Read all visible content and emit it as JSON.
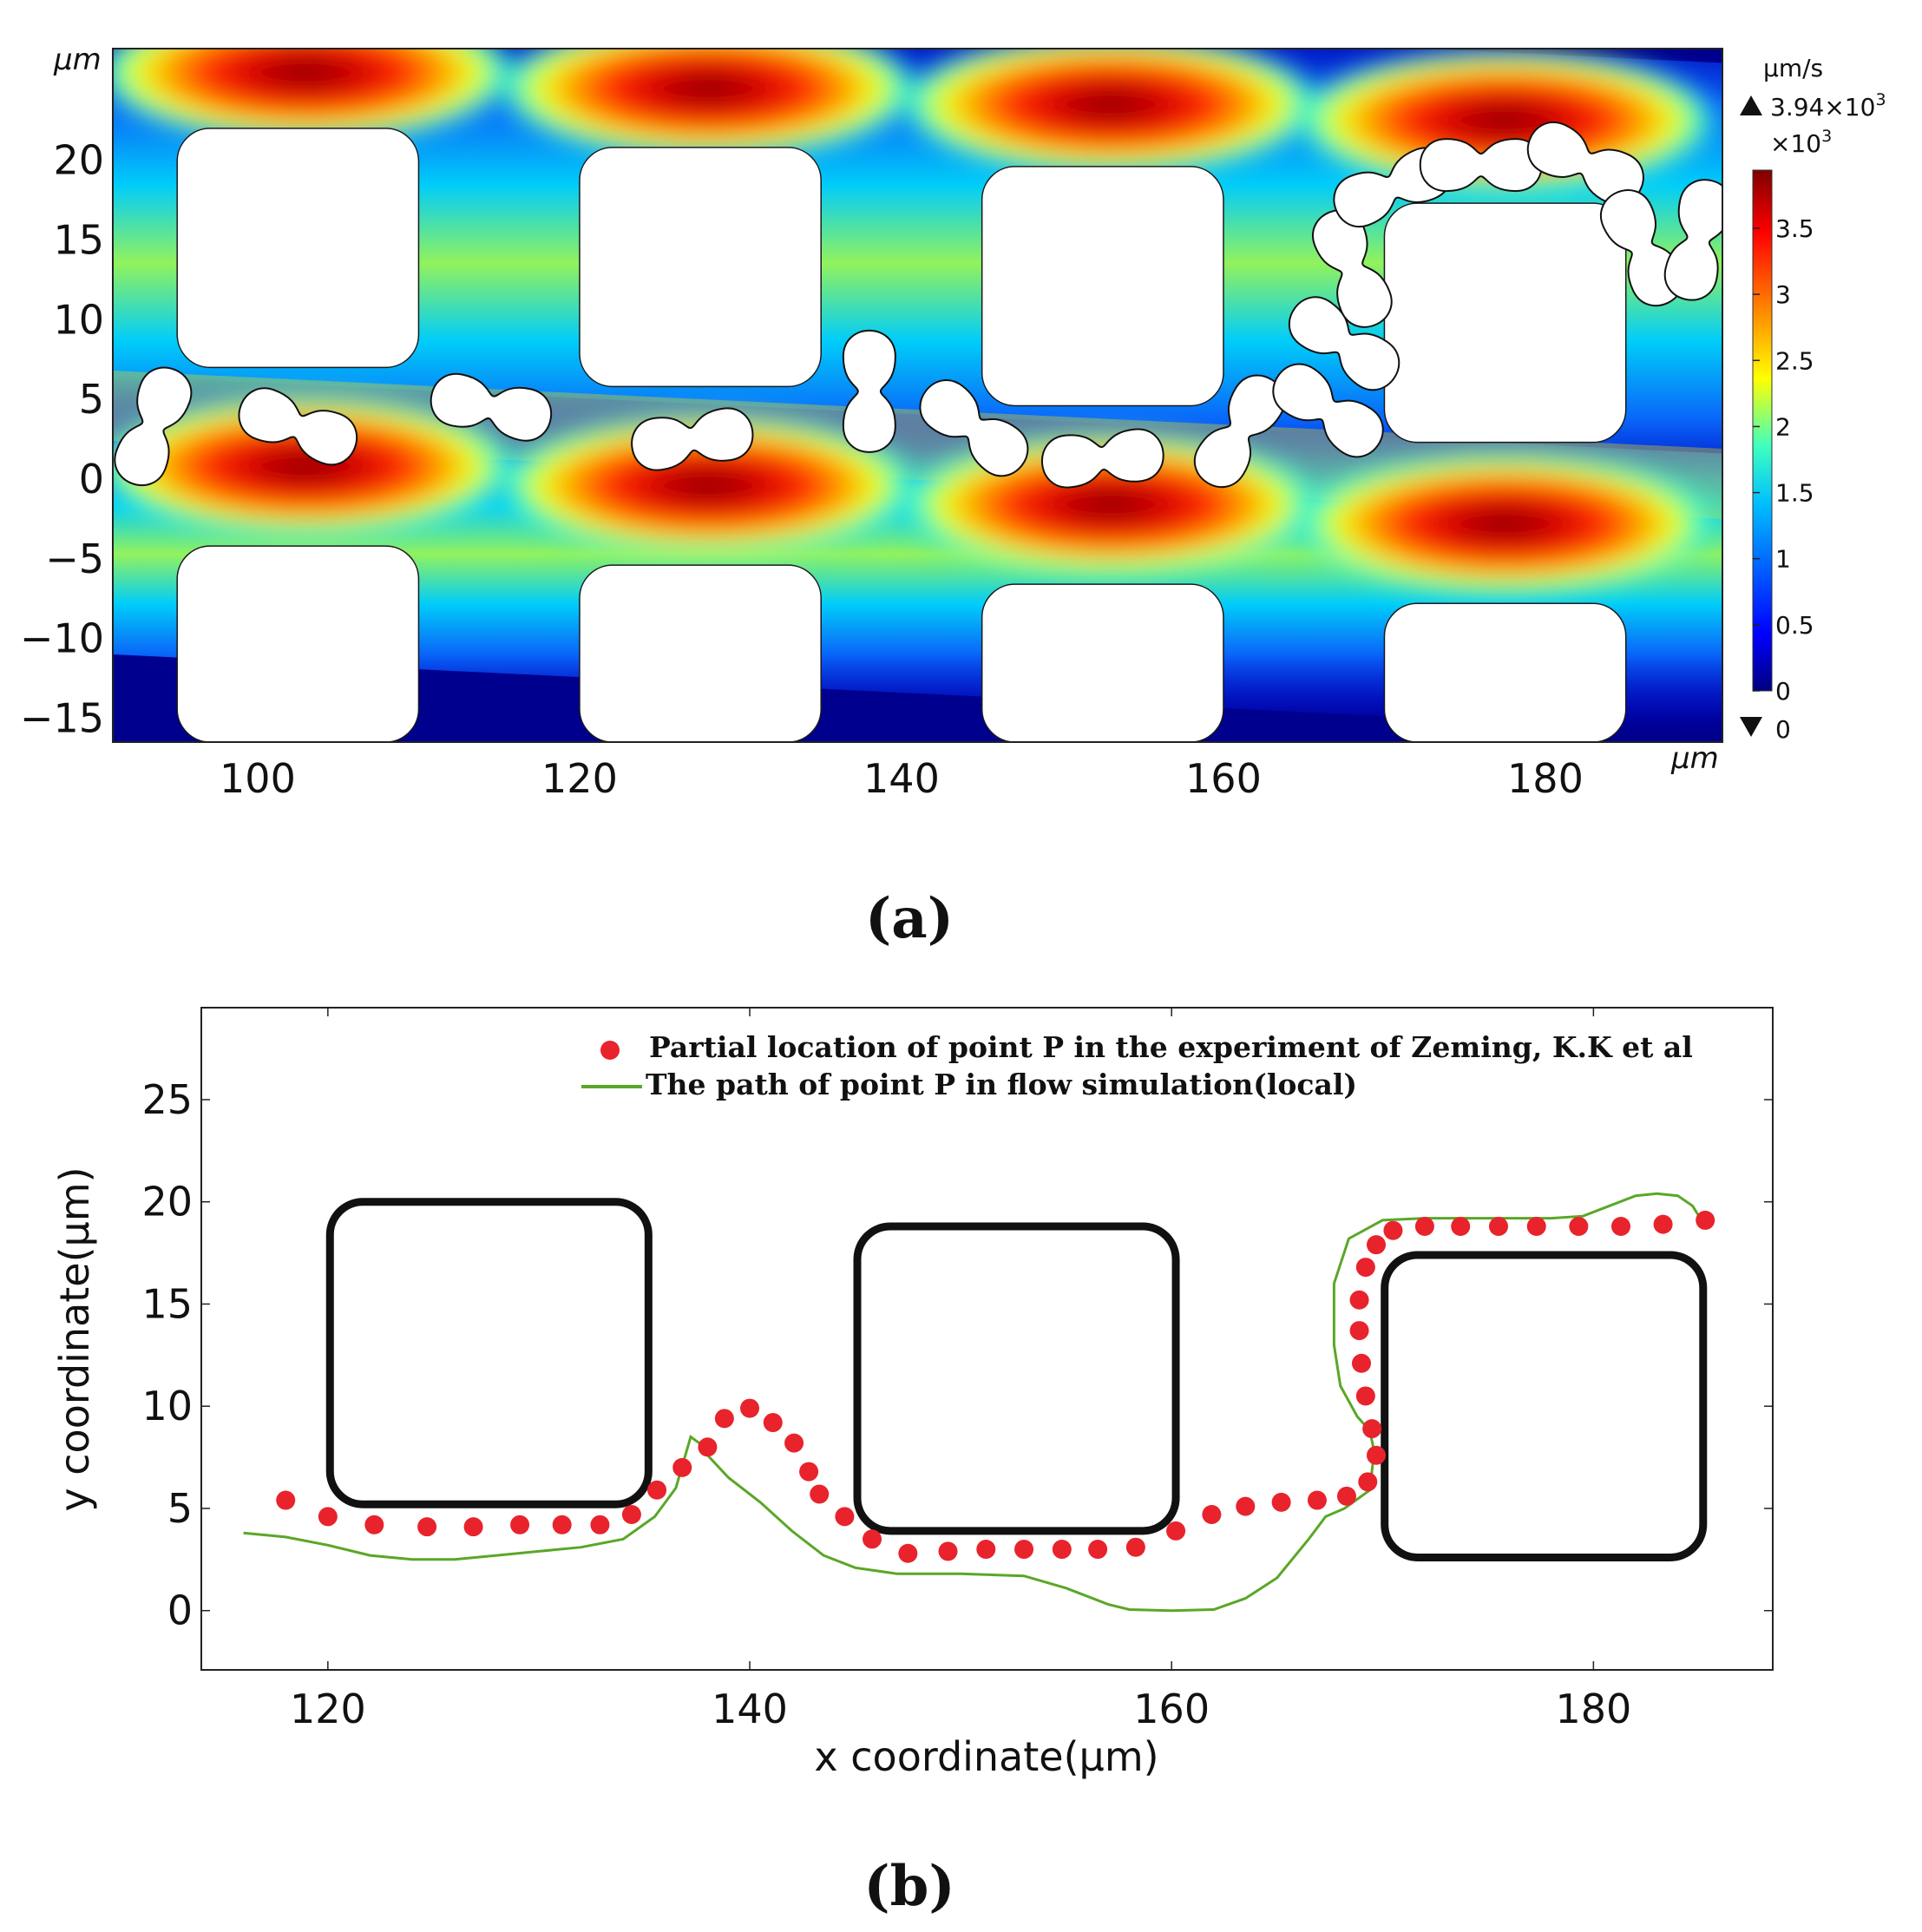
{
  "panel_a_label": "(a)",
  "panel_b_label": "(b)",
  "chart_data": [
    {
      "type": "heatmap",
      "name": "velocity-field",
      "unit_axis": "µm",
      "xticks": [
        "100",
        "120",
        "140",
        "160",
        "180"
      ],
      "xtick_values": [
        100,
        120,
        140,
        160,
        180
      ],
      "yticks": [
        "20",
        "15",
        "10",
        "5",
        "0",
        "−5",
        "−10",
        "−15"
      ],
      "ytick_values": [
        20,
        15,
        10,
        5,
        0,
        -5,
        -10,
        -15
      ],
      "xlim": [
        91,
        191
      ],
      "ylim": [
        -16.5,
        27
      ],
      "colorbar": {
        "unit": "µm/s",
        "max_label": "3.94×10",
        "max_exp": "3",
        "scale_label": "×10",
        "scale_exp": "3",
        "ticks": [
          "3.5",
          "3",
          "2.5",
          "2",
          "1.5",
          "1",
          "0.5",
          "0"
        ],
        "tick_values": [
          3.5,
          3,
          2.5,
          2,
          1.5,
          1,
          0.5,
          0
        ],
        "min_label": "0",
        "range": [
          0,
          3.94
        ]
      },
      "colors": [
        "#00007f",
        "#0000ff",
        "#00bfff",
        "#3fffbf",
        "#ffff00",
        "#ff7f00",
        "#ff0000",
        "#7f0000"
      ],
      "pillars": [
        {
          "x": [
            95,
            110
          ],
          "y": [
            7,
            22
          ]
        },
        {
          "x": [
            120,
            135
          ],
          "y": [
            5.8,
            20.8
          ]
        },
        {
          "x": [
            145,
            160
          ],
          "y": [
            4.6,
            19.6
          ]
        },
        {
          "x": [
            170,
            185
          ],
          "y": [
            2.3,
            17.3
          ]
        },
        {
          "x": [
            95,
            110
          ],
          "y": [
            -16.5,
            -4.2
          ]
        },
        {
          "x": [
            120,
            135
          ],
          "y": [
            -16.5,
            -5.4
          ]
        },
        {
          "x": [
            145,
            160
          ],
          "y": [
            -16.5,
            -6.6
          ]
        },
        {
          "x": [
            170,
            185
          ],
          "y": [
            -16.5,
            -7.8
          ]
        }
      ],
      "cells": [
        {
          "x": 93.5,
          "y": 3.3,
          "angle": -70
        },
        {
          "x": 102.5,
          "y": 3.3,
          "angle": 20
        },
        {
          "x": 114.5,
          "y": 4.5,
          "angle": 12
        },
        {
          "x": 127,
          "y": 2.5,
          "angle": -8
        },
        {
          "x": 138,
          "y": 5.5,
          "angle": 90
        },
        {
          "x": 144.5,
          "y": 3.2,
          "angle": 38
        },
        {
          "x": 152.5,
          "y": 1.3,
          "angle": -5
        },
        {
          "x": 161,
          "y": 3.0,
          "angle": -58
        },
        {
          "x": 166.5,
          "y": 4.3,
          "angle": 35
        },
        {
          "x": 167.5,
          "y": 8.5,
          "angle": 35
        },
        {
          "x": 168,
          "y": 13.2,
          "angle": 68
        },
        {
          "x": 170.5,
          "y": 18.3,
          "angle": -22
        },
        {
          "x": 176,
          "y": 19.7,
          "angle": 0
        },
        {
          "x": 182.5,
          "y": 19.8,
          "angle": 25
        },
        {
          "x": 186,
          "y": 14.5,
          "angle": 65
        },
        {
          "x": 189.5,
          "y": 15,
          "angle": -78
        }
      ],
      "jets": [
        {
          "x": 103,
          "y": 25.5
        },
        {
          "x": 128,
          "y": 24.5
        },
        {
          "x": 153,
          "y": 23.5
        },
        {
          "x": 177.5,
          "y": 22.5
        },
        {
          "x": 103,
          "y": 0.8
        },
        {
          "x": 128,
          "y": -0.4
        },
        {
          "x": 153,
          "y": -1.6
        },
        {
          "x": 177.5,
          "y": -2.8
        }
      ]
    },
    {
      "type": "scatter",
      "name": "trajectory",
      "xlabel": "x coordinate(µm)",
      "ylabel": "y coordinate(µm)",
      "xlim": [
        114,
        188.5
      ],
      "ylim": [
        -2.9,
        29.5
      ],
      "xticks": [
        "120",
        "140",
        "160",
        "180"
      ],
      "xtick_values": [
        120,
        140,
        160,
        180
      ],
      "yticks": [
        "0",
        "5",
        "10",
        "15",
        "20",
        "25"
      ],
      "ytick_values": [
        0,
        5,
        10,
        15,
        20,
        25
      ],
      "colors": {
        "points": "#e8232c",
        "path": "#5aa727",
        "obstacle": "#111111"
      },
      "legend": {
        "position": "top-right",
        "entries": [
          "Partial location of point P in the experiment of Zeming, K.K et al",
          "The path of point P in flow simulation(local)"
        ]
      },
      "obstacles": [
        {
          "x": [
            120.1,
            135.2
          ],
          "y": [
            5.2,
            20
          ]
        },
        {
          "x": [
            145.1,
            160.2
          ],
          "y": [
            3.9,
            18.8
          ]
        },
        {
          "x": [
            170.1,
            185.2
          ],
          "y": [
            2.6,
            17.4
          ]
        }
      ],
      "series": [
        {
          "name": "Partial location of point P in the experiment of Zeming, K.K et al",
          "x": [
            118,
            120,
            122.2,
            124.7,
            126.9,
            129.1,
            131.1,
            132.9,
            134.4,
            135.6,
            136.8,
            138,
            138.8,
            140,
            141.1,
            142.1,
            142.8,
            143.3,
            144.5,
            145.8,
            147.5,
            149.4,
            151.2,
            153,
            154.8,
            156.5,
            158.3,
            160.2,
            161.9,
            163.5,
            165.2,
            166.9,
            168.3,
            169.3,
            169.7,
            169.5,
            169.2,
            169,
            168.9,
            168.9,
            169.2,
            169.7,
            170.5,
            172,
            173.7,
            175.5,
            177.3,
            179.3,
            181.3,
            183.3,
            185.3
          ],
          "y": [
            5.4,
            4.6,
            4.2,
            4.1,
            4.1,
            4.2,
            4.2,
            4.2,
            4.7,
            5.9,
            7,
            8,
            9.4,
            9.9,
            9.2,
            8.2,
            6.8,
            5.7,
            4.6,
            3.5,
            2.8,
            2.9,
            3.0,
            3.0,
            3.0,
            3.0,
            3.1,
            3.9,
            4.7,
            5.1,
            5.3,
            5.4,
            5.6,
            6.3,
            7.6,
            8.9,
            10.5,
            12.1,
            13.7,
            15.2,
            16.8,
            17.9,
            18.6,
            18.8,
            18.8,
            18.8,
            18.8,
            18.8,
            18.8,
            18.9,
            19.1
          ]
        },
        {
          "name": "The path of point P in flow simulation(local)",
          "x": [
            116,
            118,
            120,
            122,
            124,
            126,
            128,
            130,
            132,
            134,
            135.5,
            136.5,
            137.2,
            137.6,
            138,
            139,
            140.5,
            142,
            143.5,
            145,
            147,
            150,
            153,
            155,
            157,
            158,
            160,
            162,
            163.5,
            165,
            166.5,
            167.3,
            168.2,
            169.4,
            169.6,
            169.4,
            168.8,
            168,
            167.7,
            167.7,
            168.4,
            170,
            172,
            174,
            176,
            178,
            179.5,
            180.5,
            182,
            183,
            184,
            184.7,
            185
          ],
          "y": [
            3.8,
            3.6,
            3.2,
            2.7,
            2.5,
            2.5,
            2.7,
            2.9,
            3.1,
            3.5,
            4.6,
            6.0,
            8.5,
            8.2,
            7.6,
            6.5,
            5.3,
            3.9,
            2.7,
            2.1,
            1.8,
            1.8,
            1.7,
            1.1,
            0.3,
            0.05,
            0,
            0.05,
            0.6,
            1.6,
            3.5,
            4.6,
            5.0,
            5.9,
            7.8,
            8.8,
            9.5,
            11,
            13,
            16,
            18.2,
            19.1,
            19.2,
            19.2,
            19.2,
            19.2,
            19.3,
            19.7,
            20.3,
            20.4,
            20.3,
            19.8,
            19.3
          ]
        }
      ]
    }
  ]
}
